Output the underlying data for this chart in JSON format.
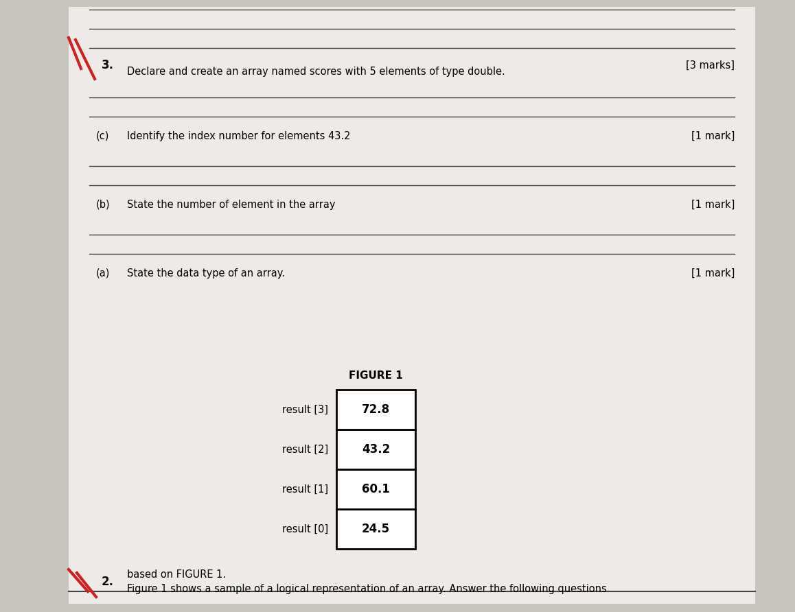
{
  "bg_color": "#c8c4c0",
  "page_bg": "#edeae7",
  "top_line_color": "#333333",
  "title_line1": "Figure 1 shows a sample of a logical representation of an array. Answer the following questions",
  "title_line2": "based on FIGURE 1.",
  "question_number": "2.",
  "array_labels": [
    "result [0]",
    "result [1]",
    "result [2]",
    "result [3]"
  ],
  "array_values": [
    "24.5",
    "60.1",
    "43.2",
    "72.8"
  ],
  "figure_caption": "FIGURE 1",
  "qa": [
    {
      "label": "(a)",
      "text": "State the data type of an array.",
      "mark": "[1 mark]",
      "extra_lines": 1
    },
    {
      "label": "(b)",
      "text": "State the number of element in the array",
      "mark": "[1 mark]",
      "extra_lines": 1
    },
    {
      "label": "(c)",
      "text": "Identify the index number for elements 43.2",
      "mark": "[1 mark]",
      "extra_lines": 1
    }
  ],
  "q3_number": "3.",
  "q3_text": "Declare and create an array named scores with 5 elements of type double.",
  "q3_mark": "[3 marks]",
  "q3_answer_lines": 2
}
